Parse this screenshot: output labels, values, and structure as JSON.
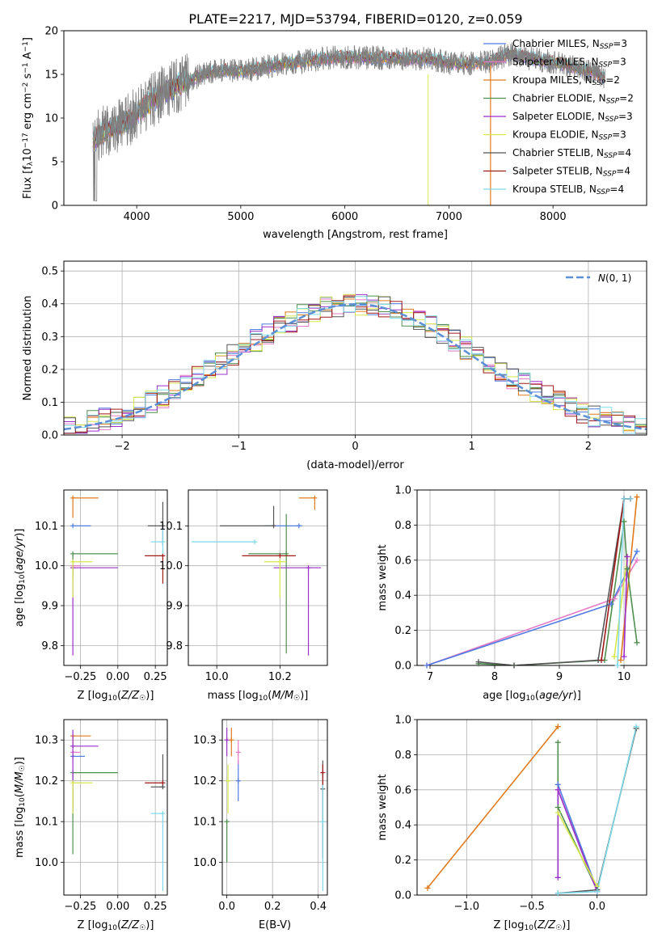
{
  "figure_title": "PLATE=2217, MJD=53794, FIBERID=0120, z=0.059",
  "colors": {
    "Chabrier MILES": "#4f7be0",
    "Salpeter MILES": "#e57ac6",
    "Kroupa MILES": "#e07b1d",
    "Chabrier ELODIE": "#4f8f4f",
    "Salpeter ELODIE": "#9b30c8",
    "Kroupa ELODIE": "#d7e84a",
    "Chabrier STELIB": "#555555",
    "Salpeter STELIB": "#a01a1a",
    "Kroupa STELIB": "#7fd9e8"
  },
  "chart_data": [
    {
      "id": "spectrum",
      "type": "line",
      "title": "PLATE=2217, MJD=53794, FIBERID=0120, z=0.059",
      "xlabel": "wavelength [Angstrom, rest frame]",
      "ylabel": "Flux [f_λ 10^-17 erg cm^-2 s^-1 A^-1]",
      "xlim": [
        3300,
        8900
      ],
      "ylim": [
        0,
        20
      ],
      "xticks": [
        4000,
        5000,
        6000,
        7000,
        8000
      ],
      "yticks": [
        0,
        5,
        10,
        15,
        20
      ],
      "legend_position": "top-right",
      "legend": [
        {
          "model": "Chabrier MILES",
          "nssp": "3"
        },
        {
          "model": "Salpeter MILES",
          "nssp": "3"
        },
        {
          "model": "Kroupa MILES",
          "nssp": "2"
        },
        {
          "model": "Chabrier ELODIE",
          "nssp": "2"
        },
        {
          "model": "Salpeter ELODIE",
          "nssp": "3"
        },
        {
          "model": "Kroupa ELODIE",
          "nssp": "3"
        },
        {
          "model": "Chabrier STELIB",
          "nssp": "4"
        },
        {
          "model": "Salpeter STELIB",
          "nssp": "4"
        },
        {
          "model": "Kroupa STELIB",
          "nssp": "4"
        }
      ],
      "data_color": "#808080",
      "continuum": {
        "x": [
          3580,
          3700,
          3900,
          4000,
          4200,
          4400,
          4600,
          4800,
          5000,
          5200,
          5400,
          5600,
          5800,
          6000,
          6200,
          6400,
          6600,
          6800,
          7000,
          7200,
          7400,
          7600,
          7800,
          8000,
          8200,
          8400,
          8500
        ],
        "y": [
          7.5,
          8.5,
          9.5,
          10.5,
          12.5,
          13.8,
          14.8,
          15.5,
          15.3,
          15.8,
          16.2,
          16.5,
          16.8,
          17.0,
          16.9,
          16.9,
          16.8,
          16.8,
          16.3,
          16.2,
          16.5,
          17.4,
          16.8,
          16.4,
          15.8,
          15.2,
          14.6
        ]
      }
    },
    {
      "id": "residuals",
      "type": "line",
      "xlabel": "(data-model)/error",
      "ylabel": "Normed distribution",
      "xlim": [
        -2.5,
        2.5
      ],
      "ylim": [
        0,
        0.53
      ],
      "xticks": [
        -2,
        -1,
        0,
        1,
        2
      ],
      "yticks": [
        0.0,
        0.1,
        0.2,
        0.3,
        0.4,
        0.5
      ],
      "legend_position": "top-right",
      "reference_label": "N(0,1)",
      "reference_curve": {
        "mean": 0,
        "sigma": 1
      }
    },
    {
      "id": "age-vs-z",
      "type": "scatter",
      "xlabel": "Z [log10(Z/Z☉)]",
      "ylabel": "age [log10(age/yr)]",
      "xlim": [
        -0.36,
        0.33
      ],
      "ylim": [
        9.75,
        10.19
      ],
      "xticks": [
        -0.25,
        0.0,
        0.25
      ],
      "yticks": [
        9.8,
        9.9,
        10.0,
        10.1
      ],
      "points": [
        {
          "model": "Chabrier MILES",
          "x": -0.3,
          "xerr": [
            0.0,
            0.12
          ],
          "y": 10.1,
          "yerr": [
            0.0,
            0.0
          ]
        },
        {
          "model": "Salpeter MILES",
          "x": -0.3,
          "xerr": [
            0.0,
            0.05
          ],
          "y": 10.0,
          "yerr": [
            0.0,
            0.0
          ]
        },
        {
          "model": "Kroupa MILES",
          "x": -0.3,
          "xerr": [
            0.0,
            0.17
          ],
          "y": 10.17,
          "yerr": [
            0.05,
            0.0
          ]
        },
        {
          "model": "Chabrier ELODIE",
          "x": -0.3,
          "xerr": [
            0.0,
            0.3
          ],
          "y": 10.03,
          "yerr": [
            0.06,
            0.0
          ]
        },
        {
          "model": "Salpeter ELODIE",
          "x": -0.3,
          "xerr": [
            0.0,
            0.3
          ],
          "y": 9.995,
          "yerr": [
            0.22,
            0.0
          ]
        },
        {
          "model": "Kroupa ELODIE",
          "x": -0.3,
          "xerr": [
            0.0,
            0.13
          ],
          "y": 10.01,
          "yerr": [
            0.09,
            0.0
          ]
        },
        {
          "model": "Chabrier STELIB",
          "x": 0.3,
          "xerr": [
            0.1,
            0.0
          ],
          "y": 10.1,
          "yerr": [
            0.05,
            0.06
          ]
        },
        {
          "model": "Salpeter STELIB",
          "x": 0.3,
          "xerr": [
            0.12,
            0.0
          ],
          "y": 10.025,
          "yerr": [
            0.07,
            0.0
          ]
        },
        {
          "model": "Kroupa STELIB",
          "x": 0.3,
          "xerr": [
            0.08,
            0.0
          ],
          "y": 10.06,
          "yerr": [
            0.03,
            0.04
          ]
        }
      ]
    },
    {
      "id": "age-vs-mass",
      "type": "scatter",
      "xlabel": "mass [log10(M/M☉)]",
      "ylabel": "",
      "xlim": [
        9.91,
        10.35
      ],
      "ylim": [
        9.75,
        10.19
      ],
      "xticks": [
        10.0,
        10.2
      ],
      "yticks": [
        9.8,
        9.9,
        10.0,
        10.1
      ],
      "points": [
        {
          "model": "Chabrier MILES",
          "x": 10.26,
          "xerr": [
            0.11,
            0.01
          ],
          "y": 10.1,
          "yerr": [
            0.0,
            0.0
          ]
        },
        {
          "model": "Kroupa MILES",
          "x": 10.31,
          "xerr": [
            0.05,
            0.0
          ],
          "y": 10.17,
          "yerr": [
            0.03,
            0.0
          ]
        },
        {
          "model": "Chabrier ELODIE",
          "x": 10.22,
          "xerr": [
            0.12,
            0.0
          ],
          "y": 10.03,
          "yerr": [
            0.25,
            0.1
          ]
        },
        {
          "model": "Salpeter ELODIE",
          "x": 10.29,
          "xerr": [
            0.11,
            0.04
          ],
          "y": 9.995,
          "yerr": [
            0.22,
            0.0
          ]
        },
        {
          "model": "Kroupa ELODIE",
          "x": 10.2,
          "xerr": [
            0.05,
            0.02
          ],
          "y": 10.01,
          "yerr": [
            0.09,
            0.0
          ]
        },
        {
          "model": "Chabrier STELIB",
          "x": 10.18,
          "xerr": [
            0.17,
            0.0
          ],
          "y": 10.1,
          "yerr": [
            0.0,
            0.05
          ]
        },
        {
          "model": "Salpeter STELIB",
          "x": 10.2,
          "xerr": [
            0.12,
            0.05
          ],
          "y": 10.025,
          "yerr": [
            0.0,
            0.0
          ]
        },
        {
          "model": "Kroupa STELIB",
          "x": 10.12,
          "xerr": [
            0.2,
            0.0
          ],
          "y": 10.06,
          "yerr": [
            0.0,
            0.0
          ]
        }
      ]
    },
    {
      "id": "weight-vs-age",
      "type": "line",
      "xlabel": "age [log10(age/yr)]",
      "ylabel": "mass weight",
      "xlim": [
        6.8,
        10.35
      ],
      "ylim": [
        0,
        1.0
      ],
      "xticks": [
        7,
        8,
        9,
        10
      ],
      "yticks": [
        0.0,
        0.2,
        0.4,
        0.6,
        0.8,
        1.0
      ],
      "series": [
        {
          "model": "Salpeter MILES",
          "x": [
            6.95,
            9.85,
            10.2
          ],
          "y": [
            0.0,
            0.38,
            0.6
          ]
        },
        {
          "model": "Chabrier MILES",
          "x": [
            6.95,
            9.8,
            10.2
          ],
          "y": [
            0.0,
            0.35,
            0.65
          ]
        },
        {
          "model": "Kroupa MILES",
          "x": [
            9.95,
            10.2
          ],
          "y": [
            0.03,
            0.96
          ]
        },
        {
          "model": "Chabrier ELODIE",
          "x": [
            7.75,
            8.3,
            9.7,
            10.0,
            10.05,
            10.2
          ],
          "y": [
            0.01,
            0.0,
            0.03,
            0.82,
            0.55,
            0.13
          ]
        },
        {
          "model": "Chabrier STELIB",
          "x": [
            7.75,
            8.3,
            9.6,
            10.0,
            10.1
          ],
          "y": [
            0.02,
            0.0,
            0.03,
            0.95,
            0.95
          ]
        },
        {
          "model": "Salpeter STELIB",
          "x": [
            9.65,
            10.0,
            10.1
          ],
          "y": [
            0.03,
            0.95,
            0.95
          ]
        },
        {
          "model": "Kroupa ELODIE",
          "x": [
            9.85,
            10.05
          ],
          "y": [
            0.05,
            0.62
          ]
        },
        {
          "model": "Kroupa STELIB",
          "x": [
            9.9,
            10.0,
            10.1
          ],
          "y": [
            0.0,
            0.95,
            0.95
          ]
        },
        {
          "model": "Salpeter ELODIE",
          "x": [
            10.0,
            10.05
          ],
          "y": [
            0.05,
            0.62
          ]
        }
      ]
    },
    {
      "id": "mass-vs-z",
      "type": "scatter",
      "xlabel": "Z [log10(Z/Z☉)]",
      "ylabel": "mass [log10(M/M☉)]",
      "xlim": [
        -0.36,
        0.33
      ],
      "ylim": [
        9.92,
        10.35
      ],
      "xticks": [
        -0.25,
        0.0,
        0.25
      ],
      "yticks": [
        10.0,
        10.1,
        10.2,
        10.3
      ],
      "points": [
        {
          "model": "Chabrier MILES",
          "x": -0.3,
          "xerr": [
            0.0,
            0.08
          ],
          "y": 10.26,
          "yerr": [
            0.0,
            0.0
          ]
        },
        {
          "model": "Salpeter MILES",
          "x": -0.3,
          "xerr": [
            0.0,
            0.05
          ],
          "y": 10.27,
          "yerr": [
            0.0,
            0.0
          ]
        },
        {
          "model": "Kroupa MILES",
          "x": -0.3,
          "xerr": [
            0.0,
            0.12
          ],
          "y": 10.31,
          "yerr": [
            0.02,
            0.0
          ]
        },
        {
          "model": "Chabrier ELODIE",
          "x": -0.3,
          "xerr": [
            0.0,
            0.3
          ],
          "y": 10.22,
          "yerr": [
            0.2,
            0.0
          ]
        },
        {
          "model": "Salpeter ELODIE",
          "x": -0.3,
          "xerr": [
            0.0,
            0.17
          ],
          "y": 10.285,
          "yerr": [
            0.16,
            0.04
          ]
        },
        {
          "model": "Kroupa ELODIE",
          "x": -0.3,
          "xerr": [
            0.0,
            0.13
          ],
          "y": 10.195,
          "yerr": [
            0.075,
            0.0
          ]
        },
        {
          "model": "Chabrier STELIB",
          "x": 0.3,
          "xerr": [
            0.08,
            0.0
          ],
          "y": 10.185,
          "yerr": [
            0.0,
            0.08
          ]
        },
        {
          "model": "Salpeter STELIB",
          "x": 0.3,
          "xerr": [
            0.12,
            0.0
          ],
          "y": 10.195,
          "yerr": [
            0.0,
            0.0
          ]
        },
        {
          "model": "Kroupa STELIB",
          "x": 0.3,
          "xerr": [
            0.08,
            0.0
          ],
          "y": 10.12,
          "yerr": [
            0.19,
            0.0
          ]
        }
      ]
    },
    {
      "id": "mass-vs-ebv",
      "type": "scatter",
      "xlabel": "E(B-V)",
      "ylabel": "",
      "xlim": [
        -0.02,
        0.44
      ],
      "ylim": [
        9.92,
        10.35
      ],
      "xticks": [
        0.0,
        0.2,
        0.4
      ],
      "yticks": [
        10.0,
        10.1,
        10.2,
        10.3
      ],
      "points": [
        {
          "model": "Chabrier MILES",
          "x": 0.05,
          "xerr": [
            0,
            0
          ],
          "y": 10.2,
          "yerr": [
            0.05,
            0.05
          ]
        },
        {
          "model": "Salpeter MILES",
          "x": 0.05,
          "xerr": [
            0,
            0
          ],
          "y": 10.27,
          "yerr": [
            0.03,
            0.03
          ]
        },
        {
          "model": "Kroupa MILES",
          "x": 0.02,
          "xerr": [
            0,
            0
          ],
          "y": 10.3,
          "yerr": [
            0.04,
            0.03
          ]
        },
        {
          "model": "Chabrier ELODIE",
          "x": 0.0,
          "xerr": [
            0,
            0
          ],
          "y": 10.1,
          "yerr": [
            0.1,
            0.0
          ]
        },
        {
          "model": "Salpeter ELODIE",
          "x": 0.0,
          "xerr": [
            0,
            0
          ],
          "y": 10.3,
          "yerr": [
            0.04,
            0.03
          ]
        },
        {
          "model": "Kroupa ELODIE",
          "x": 0.005,
          "xerr": [
            0,
            0
          ],
          "y": 10.2,
          "yerr": [
            0.08,
            0.04
          ]
        },
        {
          "model": "Chabrier STELIB",
          "x": 0.42,
          "xerr": [
            0,
            0
          ],
          "y": 10.18,
          "yerr": [
            0.17,
            0.07
          ]
        },
        {
          "model": "Salpeter STELIB",
          "x": 0.42,
          "xerr": [
            0,
            0
          ],
          "y": 10.22,
          "yerr": [
            0.03,
            0.02
          ]
        },
        {
          "model": "Kroupa STELIB",
          "x": 0.42,
          "xerr": [
            0,
            0
          ],
          "y": 10.1,
          "yerr": [
            0.17,
            0.09
          ]
        }
      ]
    },
    {
      "id": "weight-vs-z",
      "type": "line",
      "xlabel": "Z [log10(Z/Z☉)]",
      "ylabel": "mass weight",
      "xlim": [
        -1.38,
        0.38
      ],
      "ylim": [
        0,
        1.0
      ],
      "xticks": [
        -1.0,
        -0.5,
        0.0
      ],
      "yticks": [
        0.0,
        0.2,
        0.4,
        0.6,
        0.8,
        1.0
      ],
      "series": [
        {
          "model": "Kroupa MILES",
          "x": [
            -1.3,
            -0.3
          ],
          "y": [
            0.04,
            0.96
          ]
        },
        {
          "model": "Chabrier ELODIE",
          "x": [
            -0.3,
            -0.3,
            0.0,
            0.3
          ],
          "y": [
            0.87,
            0.5,
            0.03,
            0.95
          ]
        },
        {
          "model": "Chabrier MILES",
          "x": [
            -0.3,
            0.0
          ],
          "y": [
            0.63,
            0.03
          ]
        },
        {
          "model": "Salpeter MILES",
          "x": [
            -0.3,
            0.0
          ],
          "y": [
            0.6,
            0.02
          ]
        },
        {
          "model": "Salpeter ELODIE",
          "x": [
            -0.3,
            -0.3,
            0.0
          ],
          "y": [
            0.1,
            0.6,
            0.02
          ]
        },
        {
          "model": "Kroupa ELODIE",
          "x": [
            -0.3,
            0.0
          ],
          "y": [
            0.47,
            0.05
          ]
        },
        {
          "model": "Chabrier STELIB",
          "x": [
            -0.3,
            0.0,
            0.3
          ],
          "y": [
            0.01,
            0.03,
            0.95
          ]
        },
        {
          "model": "Kroupa STELIB",
          "x": [
            -0.3,
            0.0,
            0.3
          ],
          "y": [
            0.01,
            0.02,
            0.96
          ]
        }
      ]
    }
  ]
}
